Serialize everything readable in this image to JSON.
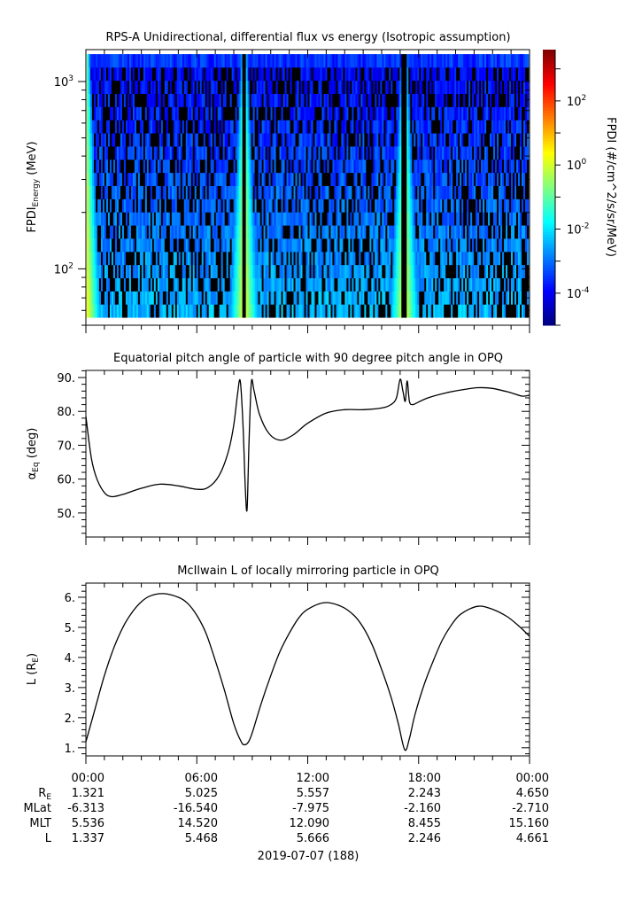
{
  "chart_data": [
    {
      "type": "heatmap",
      "title": "RPS-A Unidirectional, differential flux vs energy (Isotropic assumption)",
      "ylabel": {
        "base": "FPDI",
        "sub": "Energy",
        "unit": "(MeV)"
      },
      "yscale": "log",
      "ylim": [
        50,
        1480
      ],
      "yticks": [
        {
          "value": 100,
          "base": "10",
          "exp": "2"
        },
        {
          "value": 1000,
          "base": "10",
          "exp": "3"
        }
      ],
      "energy_range_mev": [
        55,
        1400
      ],
      "energy_bins": 20,
      "xlim_hours": [
        0,
        24
      ],
      "data_gaps_hours": [
        8.55,
        17.25
      ],
      "perigee_hours": [
        0,
        8.55,
        17.25
      ],
      "colorbar": {
        "label": "FPDI (#/cm^2/s/sr/MeV)",
        "scale": "log",
        "log_range": [
          -5.0,
          3.6
        ],
        "ticks": [
          {
            "value": 2,
            "base": "10",
            "exp": "2"
          },
          {
            "value": 0,
            "base": "10",
            "exp": "0"
          },
          {
            "value": -2,
            "base": "10",
            "exp": "-2"
          },
          {
            "value": -4,
            "base": "10",
            "exp": "-4"
          }
        ]
      }
    },
    {
      "type": "line",
      "title": "Equatorial pitch angle of particle with 90 degree pitch angle in OPQ",
      "ylabel": {
        "base": "α",
        "sub": "Eq",
        "unit": "(deg)"
      },
      "ylim": [
        42.9,
        92.1
      ],
      "yticks": [
        {
          "value": 50,
          "label": "50."
        },
        {
          "value": 60,
          "label": "60."
        },
        {
          "value": 70,
          "label": "70."
        },
        {
          "value": 80,
          "label": "80."
        },
        {
          "value": 90,
          "label": "90."
        }
      ],
      "x_hours": [
        0,
        0.3,
        0.6,
        1.0,
        1.4,
        2.0,
        3.0,
        4.0,
        5.0,
        6.0,
        6.6,
        7.2,
        7.7,
        8.0,
        8.2,
        8.35,
        8.5,
        8.62,
        8.72,
        8.82,
        8.95,
        9.1,
        9.4,
        9.9,
        10.5,
        11.2,
        12.0,
        13.0,
        14.0,
        15.0,
        16.0,
        16.5,
        16.8,
        17.0,
        17.15,
        17.28,
        17.38,
        17.5,
        17.65,
        17.9,
        18.5,
        19.5,
        20.5,
        21.2,
        22.0,
        23.0,
        23.6,
        24.0
      ],
      "values": [
        78.5,
        66,
        60,
        56,
        54.8,
        55.5,
        57.3,
        58.5,
        58,
        57,
        57.5,
        61,
        68,
        76,
        85,
        89,
        76,
        58,
        51,
        70,
        88.5,
        86,
        79,
        73.5,
        71.5,
        73,
        76.5,
        79.5,
        80.5,
        80.5,
        81,
        82,
        84,
        89.5,
        86,
        83,
        89,
        83,
        82,
        82.5,
        84,
        85.5,
        86.5,
        87,
        86.8,
        85.5,
        84.5,
        84.8
      ]
    },
    {
      "type": "line",
      "title": "McIlwain L of locally mirroring particle in OPQ",
      "ylabel": {
        "base": "L (R",
        "sub": "E",
        "unit": ")"
      },
      "ylim": [
        0.73,
        6.47
      ],
      "yticks": [
        {
          "value": 1,
          "label": "1."
        },
        {
          "value": 2,
          "label": "2."
        },
        {
          "value": 3,
          "label": "3."
        },
        {
          "value": 4,
          "label": "4."
        },
        {
          "value": 5,
          "label": "5."
        },
        {
          "value": 6,
          "label": "6."
        }
      ],
      "x_hours": [
        0,
        0.5,
        1.0,
        1.5,
        2.0,
        2.5,
        3.0,
        3.5,
        4.2,
        5.0,
        5.5,
        6.0,
        6.5,
        7.0,
        7.5,
        8.0,
        8.4,
        8.6,
        8.8,
        9.0,
        9.5,
        10.0,
        10.5,
        11.0,
        11.5,
        12.0,
        12.9,
        13.8,
        14.5,
        15.0,
        15.5,
        16.0,
        16.5,
        16.9,
        17.25,
        17.5,
        17.8,
        18.3,
        18.8,
        19.3,
        19.8,
        20.3,
        21.2,
        22.0,
        22.8,
        23.5,
        24.0
      ],
      "values": [
        1.2,
        2.3,
        3.4,
        4.3,
        5.0,
        5.5,
        5.85,
        6.05,
        6.12,
        6.0,
        5.8,
        5.4,
        4.8,
        3.9,
        2.9,
        1.8,
        1.2,
        1.1,
        1.2,
        1.5,
        2.5,
        3.4,
        4.2,
        4.8,
        5.3,
        5.6,
        5.82,
        5.7,
        5.4,
        5.0,
        4.4,
        3.6,
        2.7,
        1.8,
        0.93,
        1.3,
        2.1,
        3.1,
        3.9,
        4.6,
        5.1,
        5.45,
        5.7,
        5.6,
        5.35,
        5.0,
        4.7
      ]
    }
  ],
  "xaxis": {
    "ticks": [
      "00:00",
      "06:00",
      "12:00",
      "18:00",
      "00:00"
    ],
    "date": "2019-07-07 (188)"
  },
  "ephemeris": {
    "rows": [
      {
        "label": "R",
        "label_sub": "E",
        "values": [
          "1.321",
          "5.025",
          "5.557",
          "2.243",
          "4.650"
        ]
      },
      {
        "label": "MLat",
        "label_sub": "",
        "values": [
          "-6.313",
          "-16.540",
          "-7.975",
          "-2.160",
          "-2.710"
        ]
      },
      {
        "label": "MLT",
        "label_sub": "",
        "values": [
          "5.536",
          "14.520",
          "12.090",
          "8.455",
          "15.160"
        ]
      },
      {
        "label": "L",
        "label_sub": "",
        "values": [
          "1.337",
          "5.468",
          "5.666",
          "2.246",
          "4.661"
        ]
      }
    ]
  }
}
